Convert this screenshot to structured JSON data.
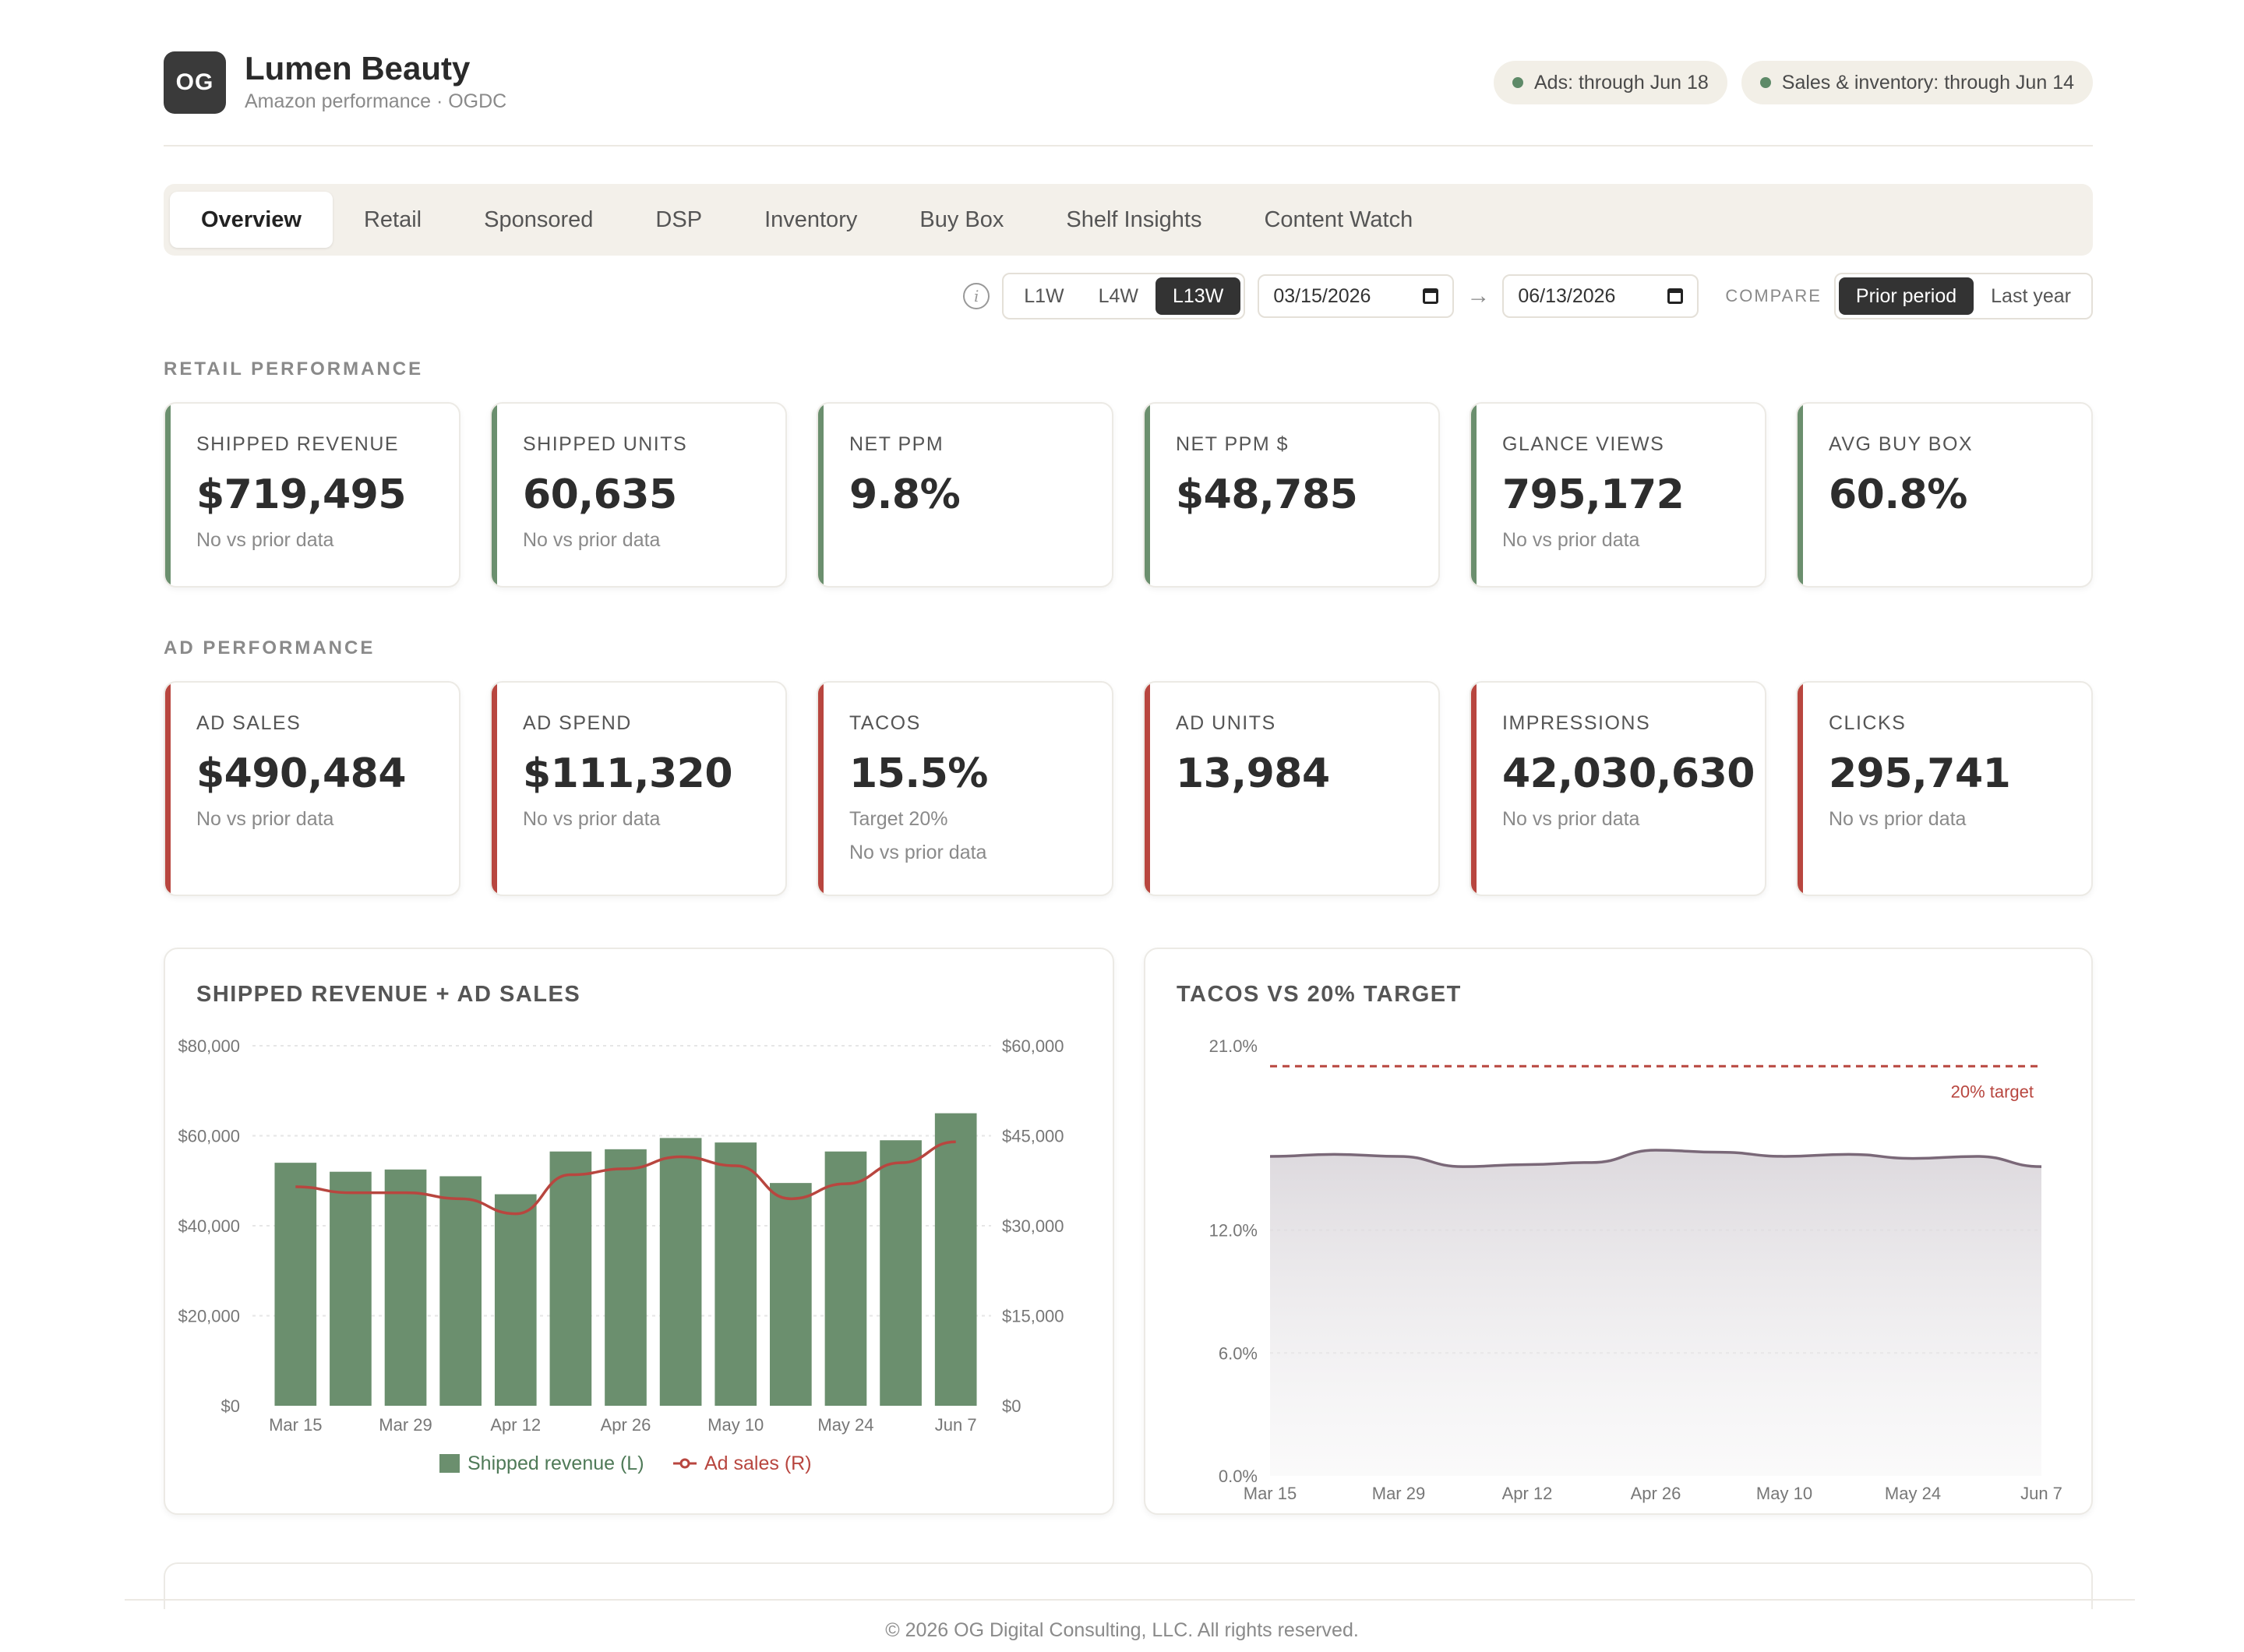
{
  "brand": {
    "logo_text": "OG",
    "title": "Lumen Beauty",
    "subtitle": "Amazon performance · OGDC"
  },
  "status_pills": [
    {
      "label": "Ads: through Jun 18",
      "color": "#5e8a68"
    },
    {
      "label": "Sales & inventory: through Jun 14",
      "color": "#5e8a68"
    }
  ],
  "tabs": [
    {
      "label": "Overview",
      "active": true
    },
    {
      "label": "Retail"
    },
    {
      "label": "Sponsored"
    },
    {
      "label": "DSP"
    },
    {
      "label": "Inventory"
    },
    {
      "label": "Buy Box"
    },
    {
      "label": "Shelf Insights"
    },
    {
      "label": "Content Watch"
    }
  ],
  "controls": {
    "info_icon": "info-icon",
    "ranges": [
      {
        "label": "L1W"
      },
      {
        "label": "L4W"
      },
      {
        "label": "L13W",
        "active": true
      }
    ],
    "start_date": "03/15/2026",
    "end_date": "06/13/2026",
    "compare_label": "COMPARE",
    "compare_options": [
      {
        "label": "Prior period",
        "active": true
      },
      {
        "label": "Last year"
      }
    ]
  },
  "retail": {
    "section_label": "RETAIL PERFORMANCE",
    "accent": "#6b8f6e",
    "cards": [
      {
        "label": "SHIPPED REVENUE",
        "value": "$719,495",
        "note": "No vs prior data"
      },
      {
        "label": "SHIPPED UNITS",
        "value": "60,635",
        "note": "No vs prior data"
      },
      {
        "label": "NET PPM",
        "value": "9.8%",
        "note": ""
      },
      {
        "label": "NET PPM $",
        "value": "$48,785",
        "note": ""
      },
      {
        "label": "GLANCE VIEWS",
        "value": "795,172",
        "note": "No vs prior data"
      },
      {
        "label": "AVG BUY BOX",
        "value": "60.8%",
        "note": ""
      }
    ]
  },
  "ads": {
    "section_label": "AD PERFORMANCE",
    "accent": "#b8463f",
    "cards": [
      {
        "label": "AD SALES",
        "value": "$490,484",
        "note": "No vs prior data",
        "note2": ""
      },
      {
        "label": "AD SPEND",
        "value": "$111,320",
        "note": "No vs prior data",
        "note2": ""
      },
      {
        "label": "TACOS",
        "value": "15.5%",
        "note": "Target 20%",
        "note2": "No vs prior data"
      },
      {
        "label": "AD UNITS",
        "value": "13,984",
        "note": "",
        "note2": ""
      },
      {
        "label": "IMPRESSIONS",
        "value": "42,030,630",
        "note": "No vs prior data",
        "note2": ""
      },
      {
        "label": "CLICKS",
        "value": "295,741",
        "note": "No vs prior data",
        "note2": ""
      }
    ]
  },
  "chart_data": [
    {
      "type": "bar",
      "title": "SHIPPED REVENUE + AD SALES",
      "categories": [
        "Mar 15",
        "Mar 22",
        "Mar 29",
        "Apr 5",
        "Apr 12",
        "Apr 19",
        "Apr 26",
        "May 3",
        "May 10",
        "May 17",
        "May 24",
        "May 31",
        "Jun 7"
      ],
      "x_tick_labels": [
        "Mar 15",
        "Mar 29",
        "Apr 12",
        "Apr 26",
        "May 10",
        "May 24",
        "Jun 7"
      ],
      "y_left_ticks": [
        "$80,000",
        "$60,000",
        "$40,000",
        "$20,000",
        "$0"
      ],
      "y_right_ticks": [
        "$60,000",
        "$45,000",
        "$30,000",
        "$15,000",
        "$0"
      ],
      "ylim_left": [
        0,
        80000
      ],
      "ylim_right": [
        0,
        60000
      ],
      "series": [
        {
          "name": "Shipped revenue (L)",
          "type": "bar",
          "axis": "left",
          "color": "#6b8f6e",
          "values": [
            54000,
            52000,
            52500,
            51000,
            47000,
            56500,
            57000,
            59500,
            58500,
            49500,
            56500,
            59000,
            65000
          ]
        },
        {
          "name": "Ad sales (R)",
          "type": "line",
          "axis": "right",
          "color": "#b8463f",
          "values": [
            36500,
            35500,
            35500,
            34500,
            32000,
            38500,
            39500,
            41500,
            40000,
            34500,
            37000,
            40500,
            44000
          ]
        }
      ],
      "grid": true,
      "legend": "bottom"
    },
    {
      "type": "area",
      "title": "TACOS VS 20% TARGET",
      "x_tick_labels": [
        "Mar 15",
        "Mar 29",
        "Apr 12",
        "Apr 26",
        "May 10",
        "May 24",
        "Jun 7"
      ],
      "y_ticks": [
        "21.0%",
        "12.0%",
        "6.0%",
        "0.0%"
      ],
      "y_tick_values": [
        21,
        12,
        6,
        0
      ],
      "ylim": [
        0,
        21
      ],
      "series": [
        {
          "name": "TACOS",
          "color": "#7a6878",
          "values": [
            15.6,
            15.7,
            15.6,
            15.1,
            15.2,
            15.3,
            15.9,
            15.8,
            15.6,
            15.7,
            15.5,
            15.6,
            15.1
          ]
        }
      ],
      "target": {
        "value": 20,
        "label": "20% target",
        "color": "#b8463f"
      },
      "grid": true
    }
  ],
  "footer": "© 2026 OG Digital Consulting, LLC. All rights reserved."
}
